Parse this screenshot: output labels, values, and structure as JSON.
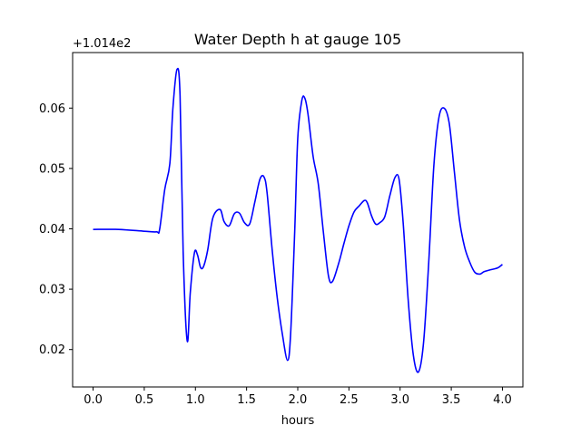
{
  "chart_data": {
    "type": "line",
    "title": "Water Depth h at gauge 105",
    "xlabel": "hours",
    "ylabel": "",
    "y_offset_text": "+1.014e2",
    "xlim": [
      -0.2,
      4.2
    ],
    "ylim": [
      0.0138,
      0.0692
    ],
    "xticks": [
      0.0,
      0.5,
      1.0,
      1.5,
      2.0,
      2.5,
      3.0,
      3.5,
      4.0
    ],
    "xtick_labels": [
      "0.0",
      "0.5",
      "1.0",
      "1.5",
      "2.0",
      "2.5",
      "3.0",
      "3.5",
      "4.0"
    ],
    "yticks": [
      0.02,
      0.03,
      0.04,
      0.05,
      0.06
    ],
    "ytick_labels": [
      "0.02",
      "0.03",
      "0.04",
      "0.05",
      "0.06"
    ],
    "grid": false,
    "series": [
      {
        "color": "#0000ff",
        "x": [
          0.0,
          0.25,
          0.5,
          0.62,
          0.65,
          0.7,
          0.75,
          0.78,
          0.82,
          0.85,
          0.88,
          0.92,
          0.95,
          0.99,
          1.02,
          1.05,
          1.08,
          1.12,
          1.17,
          1.24,
          1.28,
          1.33,
          1.38,
          1.43,
          1.48,
          1.53,
          1.58,
          1.63,
          1.67,
          1.7,
          1.75,
          1.8,
          1.85,
          1.9,
          1.93,
          1.97,
          2.0,
          2.04,
          2.07,
          2.1,
          2.15,
          2.2,
          2.25,
          2.3,
          2.34,
          2.4,
          2.45,
          2.5,
          2.55,
          2.6,
          2.65,
          2.68,
          2.72,
          2.76,
          2.8,
          2.85,
          2.9,
          2.95,
          2.99,
          3.03,
          3.08,
          3.13,
          3.18,
          3.23,
          3.28,
          3.33,
          3.38,
          3.43,
          3.48,
          3.53,
          3.58,
          3.63,
          3.68,
          3.73,
          3.78,
          3.82,
          3.88,
          3.95,
          4.0
        ],
        "values": [
          0.0399,
          0.0399,
          0.0396,
          0.0395,
          0.0399,
          0.0465,
          0.0508,
          0.06,
          0.0664,
          0.062,
          0.0362,
          0.0214,
          0.0295,
          0.036,
          0.0357,
          0.0336,
          0.0338,
          0.0365,
          0.0418,
          0.0432,
          0.0412,
          0.0405,
          0.0425,
          0.0426,
          0.041,
          0.0408,
          0.0444,
          0.0482,
          0.0486,
          0.046,
          0.0365,
          0.0285,
          0.0225,
          0.0182,
          0.0225,
          0.0395,
          0.055,
          0.0613,
          0.0616,
          0.059,
          0.052,
          0.0475,
          0.0395,
          0.0322,
          0.0313,
          0.0343,
          0.0375,
          0.0405,
          0.0428,
          0.0438,
          0.0447,
          0.0443,
          0.0422,
          0.0408,
          0.041,
          0.042,
          0.0455,
          0.0485,
          0.0482,
          0.041,
          0.028,
          0.019,
          0.0163,
          0.0213,
          0.0345,
          0.0505,
          0.0585,
          0.06,
          0.0575,
          0.0495,
          0.0415,
          0.037,
          0.0345,
          0.0328,
          0.0325,
          0.0329,
          0.0332,
          0.0335,
          0.0341
        ]
      }
    ]
  }
}
